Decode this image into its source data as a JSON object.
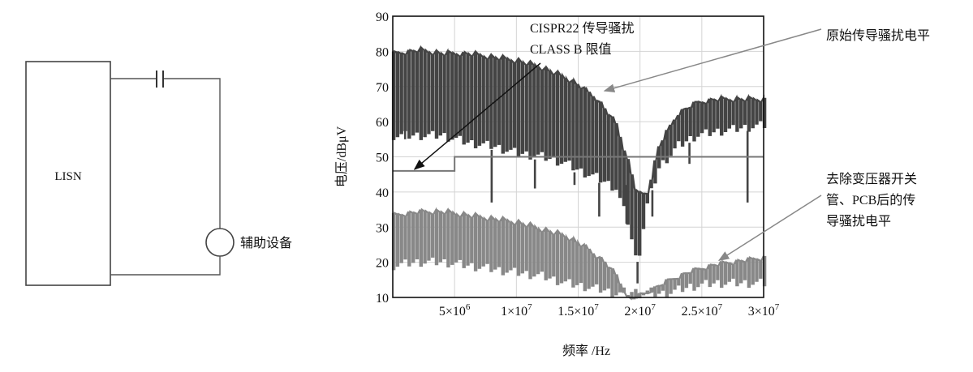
{
  "circuit": {
    "lisn_label": "LISN",
    "aux_label": "辅助设备"
  },
  "chart_data": {
    "type": "line",
    "xlabel": "频率 /Hz",
    "ylabel": "电压/dBμV",
    "xlim": [
      0,
      30000000
    ],
    "ylim": [
      10,
      90
    ],
    "x_ticks": [
      {
        "value": 5000000,
        "label": "5×10",
        "exp": "6"
      },
      {
        "value": 10000000,
        "label": "1×10",
        "exp": "7"
      },
      {
        "value": 15000000,
        "label": "1.5×10",
        "exp": "7"
      },
      {
        "value": 20000000,
        "label": "2×10",
        "exp": "7"
      },
      {
        "value": 25000000,
        "label": "2.5×10",
        "exp": "7"
      },
      {
        "value": 30000000,
        "label": "3×10",
        "exp": "7"
      }
    ],
    "y_ticks": [
      10,
      20,
      30,
      40,
      50,
      60,
      70,
      80,
      90
    ],
    "grid": true,
    "series": [
      {
        "name": "原始传导骚扰电平",
        "color": "#444444",
        "envelope": {
          "x": [
            0,
            2000000,
            4000000,
            6000000,
            8000000,
            10000000,
            12000000,
            14000000,
            15000000,
            16500000,
            18000000,
            19000000,
            19700000,
            20500000,
            21500000,
            23000000,
            24500000,
            26000000,
            28000000,
            30000000
          ],
          "upper": [
            80,
            81,
            80,
            80,
            79,
            78,
            76,
            73,
            71,
            67,
            60,
            49,
            40,
            40,
            54,
            63,
            66,
            67,
            67,
            67
          ],
          "lower": [
            55,
            55,
            55,
            53,
            52,
            50,
            49,
            47,
            45,
            43,
            40,
            30,
            18,
            35,
            46,
            52,
            55,
            56,
            57,
            58
          ]
        },
        "dips": [
          {
            "x": 1000000,
            "y": 64
          },
          {
            "x": 8000000,
            "y": 37
          },
          {
            "x": 11500000,
            "y": 41
          },
          {
            "x": 14700000,
            "y": 42
          },
          {
            "x": 16700000,
            "y": 33
          },
          {
            "x": 18900000,
            "y": 42
          },
          {
            "x": 19800000,
            "y": 14
          },
          {
            "x": 21000000,
            "y": 33
          },
          {
            "x": 24000000,
            "y": 48
          },
          {
            "x": 28700000,
            "y": 37
          }
        ]
      },
      {
        "name": "去除变压器开关管、PCB后的传导骚扰电平",
        "color": "#888888",
        "envelope": {
          "x": [
            0,
            2000000,
            4000000,
            6000000,
            8000000,
            10000000,
            12000000,
            14000000,
            15500000,
            17000000,
            18000000,
            19000000,
            20500000,
            22000000,
            24000000,
            26000000,
            28000000,
            30000000
          ],
          "upper": [
            34,
            35,
            35,
            34,
            33,
            32,
            30,
            28,
            25,
            21,
            17,
            10,
            12,
            15,
            18,
            20,
            21,
            22
          ],
          "lower": [
            18,
            19,
            19,
            18,
            17,
            16,
            15,
            13,
            12,
            11,
            10,
            10,
            10,
            10,
            12,
            13,
            13,
            13
          ]
        },
        "dips": []
      }
    ],
    "limit": {
      "name": "CISPR22 传导骚扰 CLASS B 限值",
      "x": [
        0,
        5000000,
        5000000,
        30000000
      ],
      "y": [
        46,
        46,
        50,
        50
      ],
      "color": "#777777"
    },
    "annotations": [
      {
        "id": "limit-label",
        "lines": [
          "CISPR22 传导骚扰",
          "CLASS B 限值"
        ],
        "points_to": [
          1500000,
          46
        ]
      },
      {
        "id": "orig-label",
        "lines": [
          "原始传导骚扰电平"
        ],
        "points_to": [
          17000000,
          69
        ]
      },
      {
        "id": "reduced-label",
        "lines": [
          "去除变压器开关",
          "管、PCB后的传",
          "导骚扰电平"
        ],
        "points_to": [
          26000000,
          21
        ]
      }
    ]
  }
}
